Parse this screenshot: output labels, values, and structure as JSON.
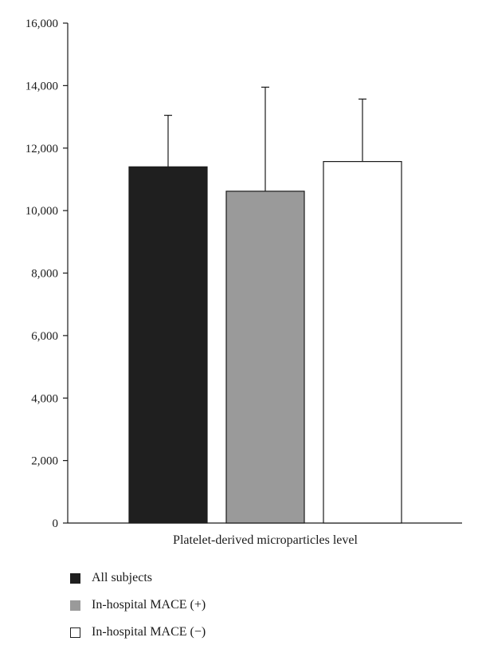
{
  "chart_data": {
    "type": "bar",
    "categories": [
      "Platelet-derived microparticles level"
    ],
    "series": [
      {
        "name": "All subjects",
        "values": [
          11400
        ],
        "error": [
          1650
        ],
        "color": "#1f1f1f"
      },
      {
        "name": "In-hospital MACE (+)",
        "values": [
          10620
        ],
        "error": [
          3330
        ],
        "color": "#9a9a9a"
      },
      {
        "name": "In-hospital MACE (−)",
        "values": [
          11570
        ],
        "error": [
          2000
        ],
        "color": "#ffffff"
      }
    ],
    "ylim": [
      0,
      16000
    ],
    "yticks": [
      0,
      2000,
      4000,
      6000,
      8000,
      10000,
      12000,
      14000,
      16000
    ],
    "ytick_labels": [
      "0",
      "2,000",
      "4,000",
      "6,000",
      "8,000",
      "10,000",
      "12,000",
      "14,000",
      "16,000"
    ],
    "xlabel": "Platelet-derived microparticles level",
    "ylabel": "",
    "title": "",
    "legend_position": "bottom-left",
    "grid": false
  },
  "legend": {
    "items": [
      {
        "label": "All subjects",
        "color": "#1f1f1f"
      },
      {
        "label": "In-hospital MACE (+)",
        "color": "#9a9a9a"
      },
      {
        "label": "In-hospital MACE (−)",
        "color": "#ffffff"
      }
    ]
  }
}
